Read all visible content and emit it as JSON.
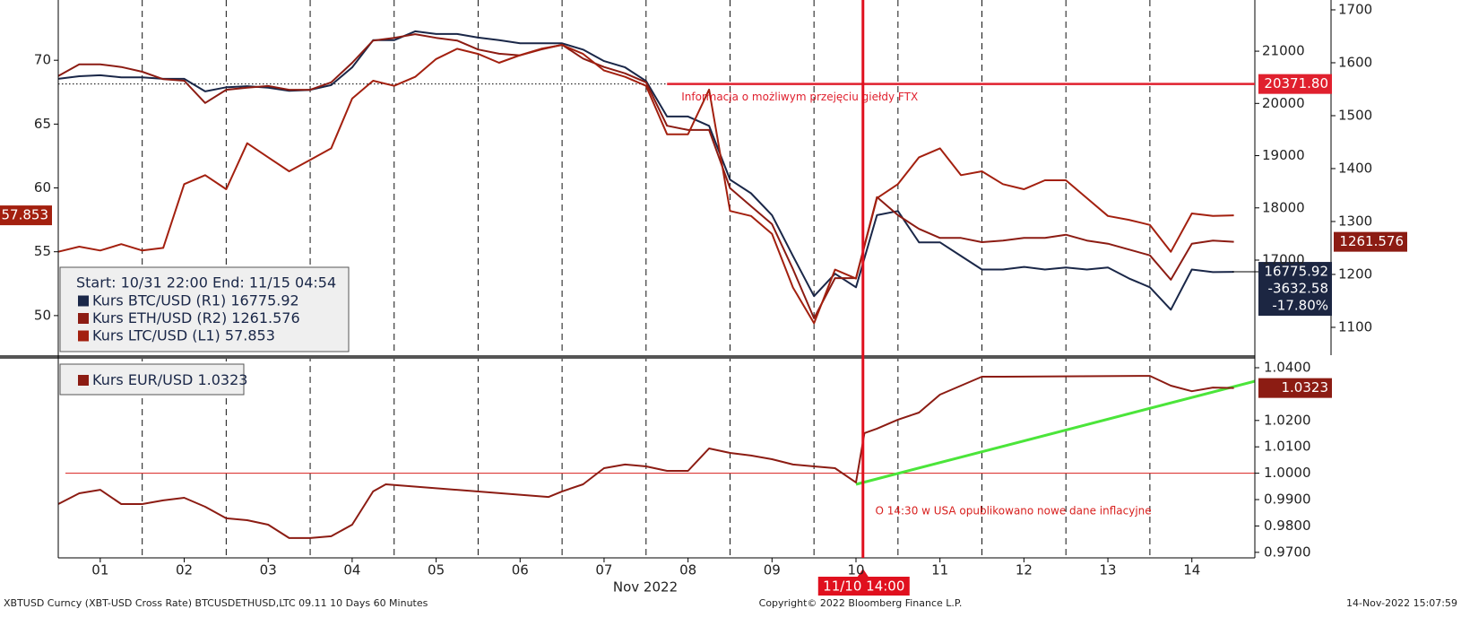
{
  "chart_data": [
    {
      "type": "line",
      "legend_header": "Start: 10/31 22:00 End: 11/15 04:54",
      "annotation": "Informacja o możliwym przejęciu giełdy FTX",
      "x": [
        1,
        1.25,
        1.5,
        1.75,
        2,
        2.25,
        2.5,
        2.75,
        3,
        3.25,
        3.5,
        3.75,
        4,
        4.25,
        4.5,
        4.75,
        5,
        5.25,
        5.5,
        5.75,
        6,
        6.25,
        6.5,
        6.75,
        7,
        7.25,
        7.5,
        7.75,
        8,
        8.25,
        8.5,
        8.75,
        9,
        9.25,
        9.5,
        9.75,
        10,
        10.25,
        10.5,
        10.75,
        11,
        11.25,
        11.5,
        11.75,
        12,
        12.25,
        12.5,
        12.75,
        13,
        13.25,
        13.5,
        13.75,
        14,
        14.25,
        14.5,
        14.75,
        15
      ],
      "xlim": [
        1,
        15.25
      ],
      "ylim": [
        46.9,
        74.72
      ],
      "yticks": [
        50,
        55,
        60,
        65,
        70
      ],
      "y2lim": [
        15180,
        21980
      ],
      "y2ticks": [
        17000,
        18000,
        19000,
        20000,
        21000
      ],
      "y3lim": [
        1047.4,
        1718.6
      ],
      "y3ticks": [
        1100,
        1200,
        1300,
        1400,
        1500,
        1600,
        1700
      ],
      "hline": {
        "value": 20371.8,
        "label": "20371.80",
        "from": 8.25,
        "color": "#e0202e"
      },
      "vline": {
        "value": 10.583,
        "label": "11/10 14:00",
        "color": "#e0101e"
      },
      "series": [
        {
          "name": "Kurs BTC/USD (R1)",
          "color": "#1a2748",
          "axis": "y2",
          "tag_lines": [
            "-3632.58",
            "-17.80%"
          ],
          "values": [
            20470,
            20520,
            20540,
            20500,
            20500,
            20470,
            20470,
            20230,
            20310,
            20330,
            20300,
            20240,
            20260,
            20350,
            20690,
            21210,
            21210,
            21380,
            21330,
            21330,
            21260,
            21210,
            21150,
            21150,
            21150,
            21030,
            20810,
            20690,
            20430,
            19750,
            19750,
            19570,
            18540,
            18280,
            17860,
            17080,
            16310,
            16740,
            16480,
            17860,
            17940,
            17340,
            17340,
            17080,
            16820,
            16820,
            16870,
            16820,
            16860,
            16820,
            16860,
            16650,
            16480,
            16050,
            16820,
            16770,
            16775.92
          ]
        },
        {
          "name": "Kurs ETH/USD (R2)",
          "color": "#8c1c13",
          "axis": "y3",
          "values": [
            1575,
            1597,
            1597,
            1592,
            1583,
            1569,
            1566,
            1524,
            1549,
            1553,
            1556,
            1549,
            1549,
            1563,
            1600,
            1642,
            1647,
            1654,
            1647,
            1642,
            1625,
            1617,
            1614,
            1625,
            1634,
            1608,
            1592,
            1580,
            1563,
            1481,
            1473,
            1473,
            1363,
            1329,
            1295,
            1210,
            1117,
            1193,
            1193,
            1346,
            1312,
            1286,
            1269,
            1269,
            1261,
            1264,
            1269,
            1269,
            1275,
            1264,
            1258,
            1247,
            1236,
            1190,
            1258,
            1264,
            1261.576
          ]
        },
        {
          "name": "Kurs LTC/USD (L1)",
          "color": "#a3200f",
          "axis": "y",
          "values": [
            55.0,
            55.4,
            55.1,
            55.6,
            55.1,
            55.3,
            60.3,
            61.0,
            59.9,
            63.5,
            62.4,
            61.3,
            62.2,
            63.1,
            67.0,
            68.4,
            68.0,
            68.7,
            70.1,
            70.9,
            70.5,
            69.8,
            70.4,
            70.9,
            71.2,
            70.5,
            69.2,
            68.7,
            68.0,
            64.2,
            64.2,
            67.7,
            58.2,
            57.8,
            56.4,
            52.2,
            49.4,
            53.6,
            52.9,
            59.2,
            60.3,
            62.4,
            63.1,
            61.0,
            61.3,
            60.3,
            59.9,
            60.6,
            60.6,
            59.2,
            57.8,
            57.5,
            57.1,
            55.0,
            58.0,
            57.8,
            57.853
          ]
        }
      ]
    },
    {
      "type": "line",
      "annotation": "O 14:30 w USA opublikowano nowe dane inflacyjne",
      "xlabel": "Nov 2022",
      "x": [
        1,
        1.25,
        1.5,
        1.75,
        2,
        2.25,
        2.5,
        2.75,
        3,
        3.25,
        3.5,
        3.75,
        4,
        4.25,
        4.5,
        4.75,
        4.9,
        6.84,
        7,
        7.25,
        7.5,
        7.75,
        8,
        8.25,
        8.5,
        8.75,
        9,
        9.25,
        9.5,
        9.75,
        10,
        10.25,
        10.5,
        10.6,
        10.75,
        11,
        11.25,
        11.5,
        11.75,
        12,
        12.25,
        14,
        14.25,
        14.5,
        14.75,
        15
      ],
      "xlim": [
        1,
        15.25
      ],
      "xticks": [
        {
          "value": 1.5,
          "label": "01"
        },
        {
          "value": 2.5,
          "label": "02"
        },
        {
          "value": 3.5,
          "label": "03"
        },
        {
          "value": 4.5,
          "label": "04"
        },
        {
          "value": 5.5,
          "label": "05"
        },
        {
          "value": 6.5,
          "label": "06"
        },
        {
          "value": 7.5,
          "label": "07"
        },
        {
          "value": 8.5,
          "label": "08"
        },
        {
          "value": 9.5,
          "label": "09"
        },
        {
          "value": 10.5,
          "label": "10"
        },
        {
          "value": 11.5,
          "label": "11"
        },
        {
          "value": 12.5,
          "label": "12"
        },
        {
          "value": 13.5,
          "label": "13"
        },
        {
          "value": 14.5,
          "label": "14"
        }
      ],
      "xgrid": [
        2,
        3,
        4,
        5,
        6,
        7,
        8,
        9,
        10,
        11,
        12,
        13,
        14
      ],
      "ylim": [
        0.9679,
        1.0434
      ],
      "yticks": [
        {
          "value": 0.97,
          "label": "0.9700"
        },
        {
          "value": 0.98,
          "label": "0.9800"
        },
        {
          "value": 0.99,
          "label": "0.9900"
        },
        {
          "value": 1.0,
          "label": "1.0000"
        },
        {
          "value": 1.01,
          "label": "1.0100"
        },
        {
          "value": 1.02,
          "label": "1.0200"
        },
        {
          "value": 1.04,
          "label": "1.0400"
        }
      ],
      "hline": {
        "value": 1.0,
        "color": "#d8201e"
      },
      "series": [
        {
          "name": "Kurs EUR/USD",
          "color": "#8c1c13",
          "axis": "y",
          "values": [
            0.9883,
            0.9924,
            0.9937,
            0.9883,
            0.9883,
            0.9897,
            0.9907,
            0.9873,
            0.9829,
            0.9822,
            0.9805,
            0.9754,
            0.9754,
            0.9761,
            0.9805,
            0.9931,
            0.9958,
            0.991,
            0.9931,
            0.9958,
            1.0019,
            1.0033,
            1.0026,
            1.0009,
            1.0009,
            1.0094,
            1.0077,
            1.0067,
            1.0053,
            1.0033,
            1.0026,
            1.0019,
            0.9965,
            1.0152,
            1.0169,
            1.0203,
            1.023,
            1.0298,
            1.0332,
            1.0366,
            1.0366,
            1.0369,
            1.0332,
            1.0311,
            1.0325,
            1.0323
          ]
        }
      ]
    }
  ],
  "footer": {
    "left": "XBTUSD Curncy (XBT-USD Cross Rate) BTCUSDETHUSD,LTC 09.11 10 Days 60 Minutes",
    "center": "Copyright© 2022 Bloomberg Finance L.P.",
    "right": "14-Nov-2022 15:07:59"
  }
}
